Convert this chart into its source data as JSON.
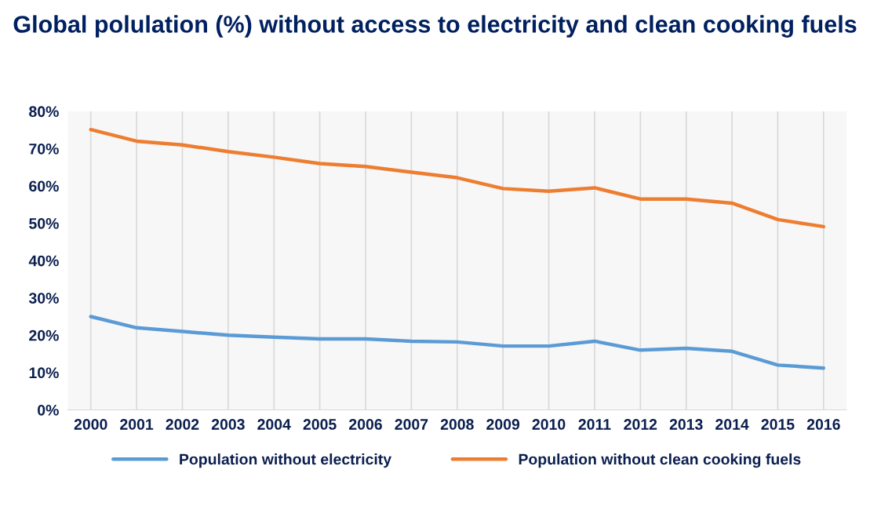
{
  "chart_data": {
    "type": "line",
    "title": "Global polulation (%) without access to electricity and clean cooking fuels",
    "categories": [
      "2000",
      "2001",
      "2002",
      "2003",
      "2004",
      "2005",
      "2006",
      "2007",
      "2008",
      "2009",
      "2010",
      "2011",
      "2012",
      "2013",
      "2014",
      "2015",
      "2016"
    ],
    "series": [
      {
        "name": "Population without electricity",
        "color": "#5b9bd5",
        "values": [
          25,
          22,
          21,
          20,
          19.5,
          19,
          19,
          18.4,
          18.2,
          17.1,
          17.1,
          18.4,
          16,
          16.5,
          15.7,
          12,
          11.2
        ]
      },
      {
        "name": "Population without clean cooking fuels",
        "color": "#ed7d31",
        "values": [
          75.1,
          72,
          71,
          69.2,
          67.7,
          66,
          65.2,
          63.7,
          62.2,
          59.3,
          58.6,
          59.5,
          56.5,
          56.5,
          55.4,
          51,
          49.1
        ]
      }
    ],
    "ylim": [
      0,
      80
    ],
    "yticks": [
      {
        "value": 0,
        "label": "0%"
      },
      {
        "value": 10,
        "label": "10%"
      },
      {
        "value": 20,
        "label": "20%"
      },
      {
        "value": 30,
        "label": "30%"
      },
      {
        "value": 40,
        "label": "40%"
      },
      {
        "value": 50,
        "label": "50%"
      },
      {
        "value": 60,
        "label": "60%"
      },
      {
        "value": 70,
        "label": "70%"
      },
      {
        "value": 80,
        "label": "80%"
      }
    ],
    "grid": "x",
    "legend": "bottom",
    "marker": "none",
    "line_style": "solid"
  }
}
